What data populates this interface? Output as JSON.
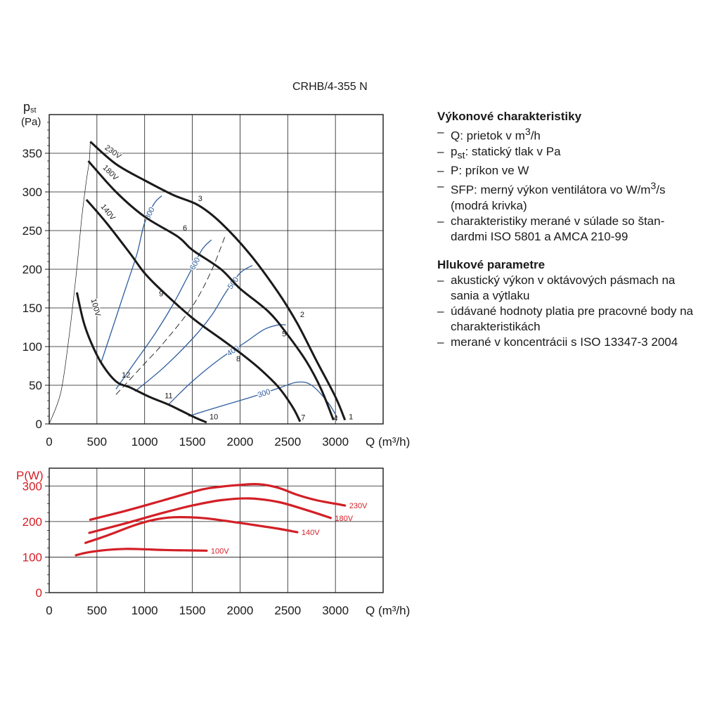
{
  "chart_data": [
    {
      "type": "line",
      "title": "CRHB/4-355 N",
      "ylabel_main": "p",
      "ylabel_sub": "st",
      "yunit": "(Pa)",
      "xlabel": "Q (m³/h)",
      "xlim": [
        0,
        3500
      ],
      "ylim": [
        0,
        400
      ],
      "xticks": [
        "0",
        "500",
        "1000",
        "1500",
        "2000",
        "2500",
        "3000"
      ],
      "yticks": [
        "0",
        "50",
        "100",
        "150",
        "200",
        "250",
        "300",
        "350"
      ],
      "grid": true,
      "colors": {
        "fan_curve": "#1a1a1a",
        "sfp_curve": "#2e5d9f",
        "system_curve": "#1a1a1a"
      },
      "series": [
        {
          "name": "230V",
          "points": [
            [
              430,
              365
            ],
            [
              700,
              336
            ],
            [
              1000,
              315
            ],
            [
              1300,
              296
            ],
            [
              1560,
              283
            ],
            [
              1800,
              260
            ],
            [
              2100,
              220
            ],
            [
              2400,
              170
            ],
            [
              2600,
              130
            ],
            [
              2800,
              82
            ],
            [
              3000,
              35
            ],
            [
              3100,
              5
            ]
          ]
        },
        {
          "name": "180V",
          "points": [
            [
              410,
              340
            ],
            [
              700,
              300
            ],
            [
              1000,
              268
            ],
            [
              1350,
              242
            ],
            [
              1500,
              225
            ],
            [
              1800,
              200
            ],
            [
              2000,
              175
            ],
            [
              2300,
              145
            ],
            [
              2500,
              115
            ],
            [
              2700,
              80
            ],
            [
              2850,
              45
            ],
            [
              2980,
              5
            ]
          ]
        },
        {
          "name": "140V",
          "points": [
            [
              390,
              290
            ],
            [
              600,
              260
            ],
            [
              850,
              220
            ],
            [
              1000,
              195
            ],
            [
              1200,
              170
            ],
            [
              1500,
              137
            ],
            [
              1800,
              110
            ],
            [
              2000,
              92
            ],
            [
              2200,
              72
            ],
            [
              2400,
              48
            ],
            [
              2550,
              22
            ],
            [
              2630,
              3
            ]
          ]
        },
        {
          "name": "100V",
          "points": [
            [
              290,
              170
            ],
            [
              360,
              132
            ],
            [
              440,
              105
            ],
            [
              550,
              78
            ],
            [
              700,
              55
            ],
            [
              850,
              47
            ],
            [
              1050,
              35
            ],
            [
              1250,
              25
            ],
            [
              1400,
              16
            ],
            [
              1550,
              7
            ],
            [
              1650,
              2
            ]
          ]
        }
      ],
      "sfp_curves": [
        {
          "label": "800",
          "points": [
            [
              540,
              78
            ],
            [
              680,
              130
            ],
            [
              800,
              175
            ],
            [
              920,
              220
            ],
            [
              1000,
              260
            ],
            [
              1100,
              285
            ],
            [
              1180,
              295
            ]
          ]
        },
        {
          "label": "600",
          "points": [
            [
              700,
              45
            ],
            [
              900,
              80
            ],
            [
              1100,
              115
            ],
            [
              1300,
              155
            ],
            [
              1450,
              190
            ],
            [
              1600,
              225
            ],
            [
              1700,
              238
            ]
          ]
        },
        {
          "label": "500",
          "points": [
            [
              900,
              42
            ],
            [
              1200,
              73
            ],
            [
              1500,
              110
            ],
            [
              1700,
              140
            ],
            [
              1850,
              170
            ],
            [
              2000,
              195
            ],
            [
              2130,
              205
            ]
          ]
        },
        {
          "label": "400",
          "points": [
            [
              1250,
              25
            ],
            [
              1500,
              55
            ],
            [
              1800,
              85
            ],
            [
              2050,
              105
            ],
            [
              2250,
              122
            ],
            [
              2400,
              128
            ],
            [
              2480,
              128
            ]
          ]
        },
        {
          "label": "300",
          "points": [
            [
              1460,
              10
            ],
            [
              1800,
              23
            ],
            [
              2100,
              34
            ],
            [
              2400,
              46
            ],
            [
              2600,
              54
            ],
            [
              2750,
              50
            ],
            [
              2920,
              28
            ],
            [
              3020,
              8
            ]
          ]
        }
      ],
      "system_curves": [
        {
          "points": [
            [
              0,
              0
            ],
            [
              120,
              40
            ],
            [
              200,
              105
            ],
            [
              280,
              190
            ],
            [
              340,
              265
            ],
            [
              390,
              315
            ],
            [
              420,
              340
            ],
            [
              430,
              365
            ]
          ]
        },
        {
          "points": [
            [
              700,
              38
            ],
            [
              1000,
              78
            ],
            [
              1200,
              105
            ],
            [
              1500,
              152
            ],
            [
              1700,
              198
            ],
            [
              1850,
              245
            ]
          ]
        }
      ],
      "operating_points": [
        {
          "label": "1",
          "q": 3140,
          "p": 6
        },
        {
          "label": "2",
          "q": 2630,
          "p": 138
        },
        {
          "label": "3",
          "q": 1560,
          "p": 288
        },
        {
          "label": "4",
          "q": 2980,
          "p": 4
        },
        {
          "label": "5",
          "q": 2440,
          "p": 113
        },
        {
          "label": "6",
          "q": 1400,
          "p": 250
        },
        {
          "label": "7",
          "q": 2640,
          "p": 5
        },
        {
          "label": "8",
          "q": 1960,
          "p": 81
        },
        {
          "label": "9",
          "q": 1150,
          "p": 165
        },
        {
          "label": "10",
          "q": 1680,
          "p": 6
        },
        {
          "label": "11",
          "q": 1210,
          "p": 33
        },
        {
          "label": "12",
          "q": 760,
          "p": 60
        }
      ]
    },
    {
      "type": "line",
      "ylabel": "P(W)",
      "xlabel": "Q (m³/h)",
      "xlim": [
        0,
        3500
      ],
      "ylim": [
        0,
        350
      ],
      "xticks": [
        "0",
        "500",
        "1000",
        "1500",
        "2000",
        "2500",
        "3000"
      ],
      "yticks": [
        "0",
        "100",
        "200",
        "300"
      ],
      "grid": true,
      "colors": {
        "power_curve": "#d31f26",
        "axis_label": "#d31f26"
      },
      "series": [
        {
          "name": "230V",
          "points": [
            [
              430,
              205
            ],
            [
              800,
              230
            ],
            [
              1200,
              260
            ],
            [
              1600,
              290
            ],
            [
              1800,
              298
            ],
            [
              2000,
              303
            ],
            [
              2200,
              305
            ],
            [
              2400,
              295
            ],
            [
              2600,
              275
            ],
            [
              2800,
              260
            ],
            [
              3000,
              250
            ],
            [
              3100,
              245
            ]
          ]
        },
        {
          "name": "180V",
          "points": [
            [
              420,
              168
            ],
            [
              800,
              195
            ],
            [
              1200,
              225
            ],
            [
              1500,
              245
            ],
            [
              1800,
              260
            ],
            [
              2100,
              265
            ],
            [
              2400,
              255
            ],
            [
              2700,
              232
            ],
            [
              2950,
              210
            ]
          ]
        },
        {
          "name": "140V",
          "points": [
            [
              380,
              140
            ],
            [
              600,
              160
            ],
            [
              900,
              190
            ],
            [
              1100,
              205
            ],
            [
              1300,
              212
            ],
            [
              1600,
              210
            ],
            [
              1900,
              200
            ],
            [
              2200,
              188
            ],
            [
              2400,
              180
            ],
            [
              2600,
              170
            ]
          ]
        },
        {
          "name": "100V",
          "points": [
            [
              280,
              105
            ],
            [
              400,
              113
            ],
            [
              600,
              120
            ],
            [
              800,
              123
            ],
            [
              1000,
              122
            ],
            [
              1200,
              120
            ],
            [
              1400,
              119
            ],
            [
              1650,
              118
            ]
          ]
        }
      ]
    }
  ],
  "legend": {
    "heading1": "Výkonové charakteristiky",
    "items1": [
      [
        "Q: prietok v m",
        "3",
        "/h"
      ],
      [
        "p",
        "st",
        ": statický tlak v Pa"
      ],
      [
        "P: príkon ve W"
      ],
      [
        "SFP: merný výkon ventilátora vo W/m",
        "3",
        "/s (modrá krivka)"
      ],
      [
        "charakteristiky merané v súlade so štan-dardmi ISO 5801 a AMCA 210-99"
      ]
    ],
    "heading2": "Hlukové parametre",
    "items2": [
      "akustický výkon v oktávových pásmach na sania a výtlaku",
      "údávané hodnoty platia pre pracovné body na charakteristikách",
      "merané v koncentrácii s ISO 13347-3 2004"
    ]
  }
}
